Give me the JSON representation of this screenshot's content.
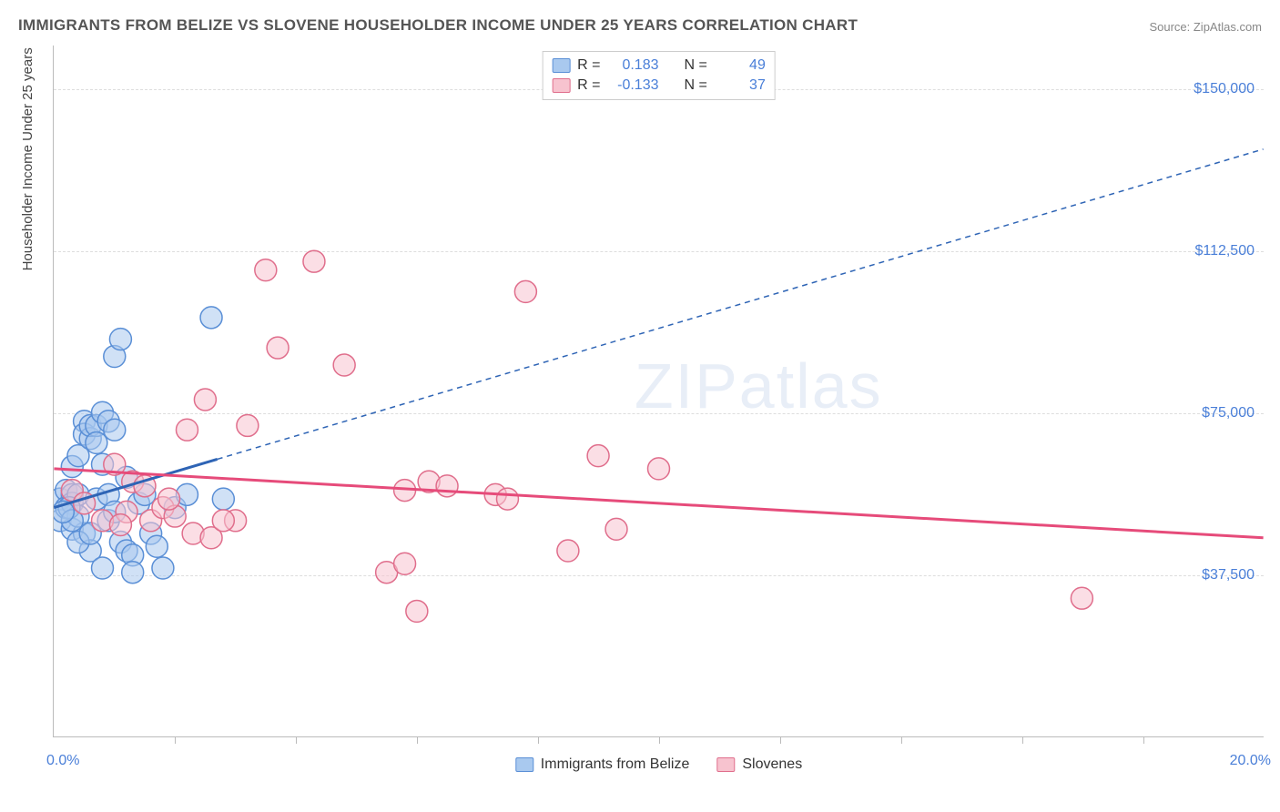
{
  "title": "IMMIGRANTS FROM BELIZE VS SLOVENE HOUSEHOLDER INCOME UNDER 25 YEARS CORRELATION CHART",
  "source": "Source: ZipAtlas.com",
  "watermark": "ZIPatlas",
  "chart": {
    "type": "scatter",
    "xlim": [
      0,
      20
    ],
    "ylim": [
      0,
      160000
    ],
    "x_min_label": "0.0%",
    "x_max_label": "20.0%",
    "y_ticks": [
      37500,
      75000,
      112500,
      150000
    ],
    "y_tick_labels": [
      "$37,500",
      "$75,000",
      "$112,500",
      "$150,000"
    ],
    "x_tick_positions": [
      2,
      4,
      6,
      8,
      10,
      12,
      14,
      16,
      18
    ],
    "ylabel": "Householder Income Under 25 years",
    "background_color": "#ffffff",
    "grid_color": "#dddddd",
    "axis_color": "#bbbbbb",
    "label_color": "#4a7fd8",
    "marker_radius": 12,
    "marker_opacity": 0.55,
    "series": [
      {
        "name": "Immigrants from Belize",
        "color_fill": "#a9c9ef",
        "color_stroke": "#5a8fd6",
        "R": "0.183",
        "N": "49",
        "points": [
          [
            0.1,
            55000
          ],
          [
            0.1,
            50000
          ],
          [
            0.2,
            57000
          ],
          [
            0.2,
            53000
          ],
          [
            0.3,
            56000
          ],
          [
            0.3,
            54000
          ],
          [
            0.3,
            48000
          ],
          [
            0.3,
            62500
          ],
          [
            0.4,
            56000
          ],
          [
            0.4,
            65000
          ],
          [
            0.5,
            73000
          ],
          [
            0.5,
            70000
          ],
          [
            0.5,
            47000
          ],
          [
            0.6,
            69000
          ],
          [
            0.6,
            72000
          ],
          [
            0.6,
            43000
          ],
          [
            0.7,
            72000
          ],
          [
            0.7,
            68000
          ],
          [
            0.8,
            75000
          ],
          [
            0.8,
            63000
          ],
          [
            0.8,
            39000
          ],
          [
            0.9,
            73000
          ],
          [
            0.9,
            50000
          ],
          [
            1.0,
            71000
          ],
          [
            1.0,
            88000
          ],
          [
            1.1,
            92000
          ],
          [
            1.1,
            45000
          ],
          [
            1.2,
            43000
          ],
          [
            1.2,
            60000
          ],
          [
            1.3,
            42000
          ],
          [
            1.3,
            38000
          ],
          [
            1.4,
            54000
          ],
          [
            1.5,
            56000
          ],
          [
            1.6,
            47000
          ],
          [
            1.7,
            44000
          ],
          [
            1.8,
            39000
          ],
          [
            2.0,
            53000
          ],
          [
            2.2,
            56000
          ],
          [
            2.6,
            97000
          ],
          [
            2.8,
            55000
          ],
          [
            0.4,
            45000
          ],
          [
            0.4,
            51000
          ],
          [
            0.25,
            53000
          ],
          [
            0.3,
            50000
          ],
          [
            0.15,
            52000
          ],
          [
            0.6,
            47000
          ],
          [
            0.7,
            55000
          ],
          [
            0.9,
            56000
          ],
          [
            1.0,
            52000
          ]
        ],
        "trend": {
          "x1": 0,
          "y1": 53000,
          "x2": 20,
          "y2": 136000,
          "solid_until_x": 2.7,
          "color": "#2e64b5",
          "width": 3
        }
      },
      {
        "name": "Slovenes",
        "color_fill": "#f7c3cf",
        "color_stroke": "#e06e8c",
        "R": "-0.133",
        "N": "37",
        "points": [
          [
            0.3,
            57000
          ],
          [
            0.5,
            54000
          ],
          [
            0.8,
            50000
          ],
          [
            1.0,
            63000
          ],
          [
            1.2,
            52000
          ],
          [
            1.3,
            59000
          ],
          [
            1.5,
            58000
          ],
          [
            1.6,
            50000
          ],
          [
            1.8,
            53000
          ],
          [
            2.0,
            51000
          ],
          [
            2.2,
            71000
          ],
          [
            2.3,
            47000
          ],
          [
            2.5,
            78000
          ],
          [
            2.6,
            46000
          ],
          [
            3.0,
            50000
          ],
          [
            3.2,
            72000
          ],
          [
            3.5,
            108000
          ],
          [
            3.7,
            90000
          ],
          [
            4.3,
            110000
          ],
          [
            4.8,
            86000
          ],
          [
            5.5,
            38000
          ],
          [
            5.8,
            40000
          ],
          [
            5.8,
            57000
          ],
          [
            6.0,
            29000
          ],
          [
            6.2,
            59000
          ],
          [
            6.5,
            58000
          ],
          [
            7.3,
            56000
          ],
          [
            7.5,
            55000
          ],
          [
            7.8,
            103000
          ],
          [
            8.5,
            43000
          ],
          [
            9.0,
            65000
          ],
          [
            9.3,
            48000
          ],
          [
            10.0,
            62000
          ],
          [
            17.0,
            32000
          ],
          [
            2.8,
            50000
          ],
          [
            1.9,
            55000
          ],
          [
            1.1,
            49000
          ]
        ],
        "trend": {
          "x1": 0,
          "y1": 62000,
          "x2": 20,
          "y2": 46000,
          "solid_until_x": 20,
          "color": "#e64b7a",
          "width": 3
        }
      }
    ],
    "legend_top": {
      "R_prefix": "R =",
      "N_prefix": "N ="
    }
  }
}
